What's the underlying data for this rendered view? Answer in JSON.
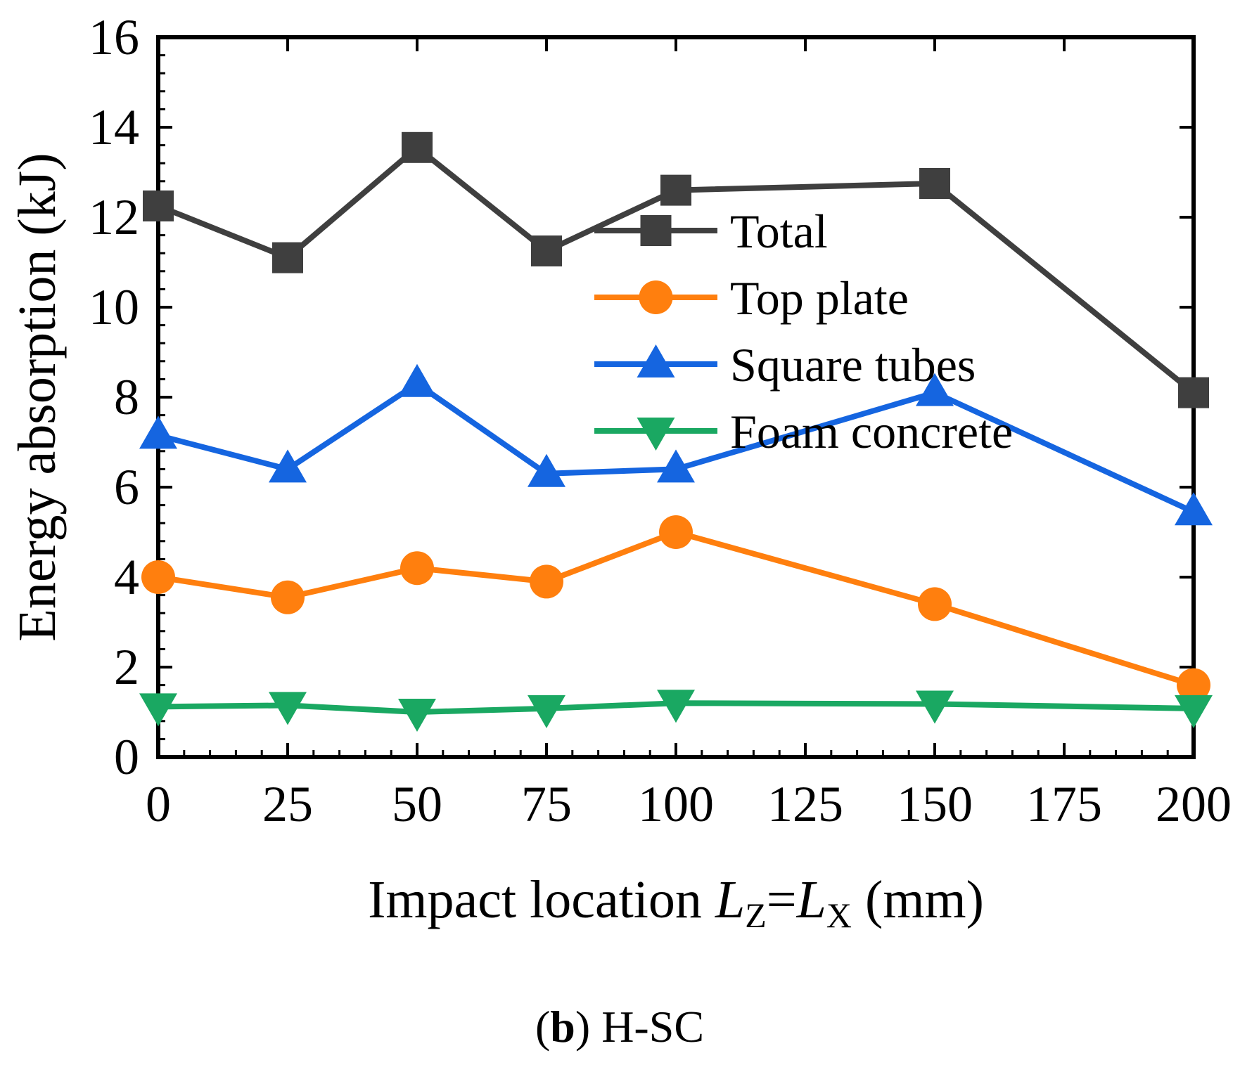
{
  "chart_data": {
    "type": "line",
    "x": [
      0,
      25,
      50,
      75,
      100,
      150,
      200
    ],
    "xlabel": {
      "prefix": "Impact location ",
      "var1": "L",
      "sub1": "Z",
      "eq": "=",
      "var2": "L",
      "sub2": "X",
      "suffix": " (mm)"
    },
    "ylabel": "Energy absorption (kJ)",
    "xlim": [
      0,
      200
    ],
    "ylim": [
      0,
      16
    ],
    "xticks": [
      "0",
      "25",
      "50",
      "75",
      "100",
      "125",
      "150",
      "175",
      "200"
    ],
    "yticks": [
      "0",
      "2",
      "4",
      "6",
      "8",
      "10",
      "12",
      "14",
      "16"
    ],
    "grid": false,
    "legend_position": "top-right",
    "series": [
      {
        "name": "Total",
        "color": "#3f3f3f",
        "marker": "square",
        "values": [
          12.25,
          11.1,
          13.55,
          11.25,
          12.6,
          12.75,
          8.1
        ]
      },
      {
        "name": "Top plate",
        "color": "#ff7f0e",
        "marker": "circle",
        "values": [
          4.0,
          3.55,
          4.2,
          3.9,
          5.0,
          3.4,
          1.6
        ]
      },
      {
        "name": "Square tubes",
        "color": "#1565e0",
        "marker": "triangle-up",
        "values": [
          7.15,
          6.4,
          8.3,
          6.3,
          6.4,
          8.1,
          5.45
        ]
      },
      {
        "name": "Foam concrete",
        "color": "#1aa862",
        "marker": "triangle-down",
        "values": [
          1.12,
          1.15,
          1.0,
          1.08,
          1.2,
          1.18,
          1.08
        ]
      }
    ],
    "caption": {
      "letter": "b",
      "text": "H-SC"
    }
  }
}
